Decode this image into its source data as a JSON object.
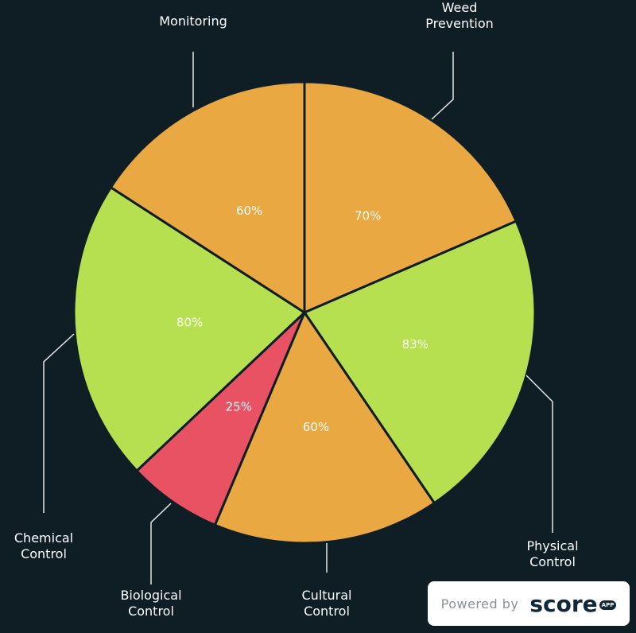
{
  "chart_data": {
    "type": "pie",
    "categories": [
      "Weed Prevention",
      "Physical Control",
      "Cultural Control",
      "Biological Control",
      "Chemical Control",
      "Monitoring"
    ],
    "values": [
      70,
      83,
      60,
      25,
      80,
      60
    ],
    "value_labels": [
      "70%",
      "83%",
      "60%",
      "25%",
      "80%",
      "60%"
    ],
    "colors": [
      "#e9a841",
      "#b6e04f",
      "#e9a841",
      "#e85262",
      "#b6e04f",
      "#e9a841"
    ]
  },
  "badge": {
    "text": "Powered by",
    "brand": "score",
    "sub": "APP"
  }
}
